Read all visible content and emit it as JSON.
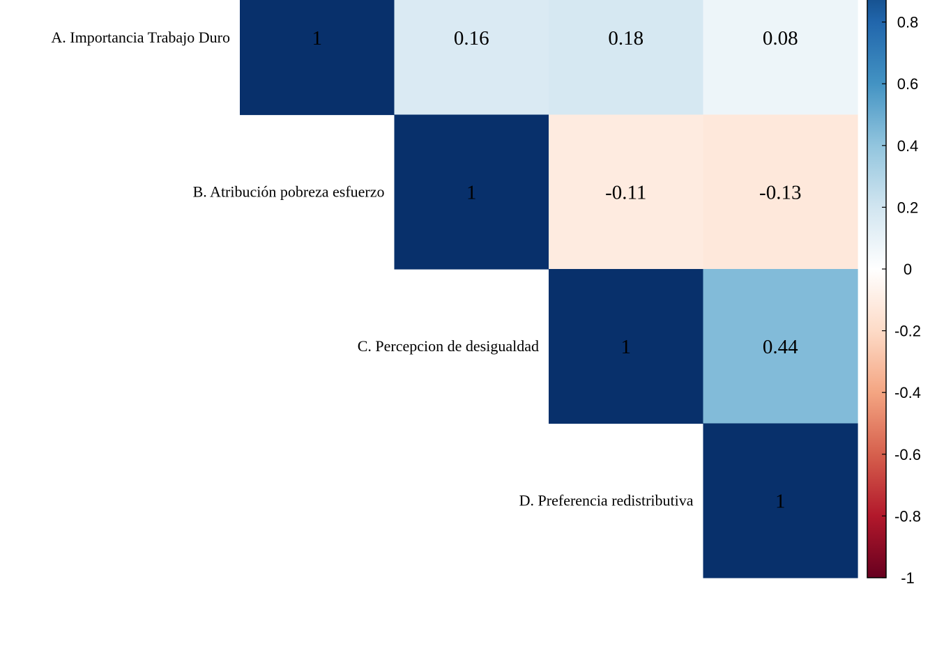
{
  "chart_data": {
    "type": "heatmap",
    "style": "upper-triangle correlation matrix",
    "variables": [
      "A. Importancia Trabajo Duro",
      "B. Atribución pobreza esfuerzo",
      "C. Percepcion de desigualdad",
      "D. Preferencia redistributiva"
    ],
    "cells": [
      {
        "row": 0,
        "col": 0,
        "value": 1,
        "label": "1"
      },
      {
        "row": 0,
        "col": 1,
        "value": 0.16,
        "label": "0.16"
      },
      {
        "row": 0,
        "col": 2,
        "value": 0.18,
        "label": "0.18"
      },
      {
        "row": 0,
        "col": 3,
        "value": 0.08,
        "label": "0.08"
      },
      {
        "row": 1,
        "col": 1,
        "value": 1,
        "label": "1"
      },
      {
        "row": 1,
        "col": 2,
        "value": -0.11,
        "label": "-0.11"
      },
      {
        "row": 1,
        "col": 3,
        "value": -0.13,
        "label": "-0.13"
      },
      {
        "row": 2,
        "col": 2,
        "value": 1,
        "label": "1"
      },
      {
        "row": 2,
        "col": 3,
        "value": 0.44,
        "label": "0.44"
      },
      {
        "row": 3,
        "col": 3,
        "value": 1,
        "label": "1"
      }
    ],
    "color_scale": {
      "domain": [
        -1,
        1
      ],
      "palette": "RdBu",
      "stops": [
        "#67001F",
        "#B2182B",
        "#D6604D",
        "#F4A582",
        "#FDDBC7",
        "#FFFFFF",
        "#D1E5F0",
        "#92C5DE",
        "#4393C3",
        "#2166AC",
        "#053061"
      ]
    },
    "colorbar": {
      "placement": "right",
      "ticks": [
        0.8,
        0.6,
        0.4,
        0.2,
        0,
        -0.2,
        -0.4,
        -0.6,
        -0.8,
        -1
      ],
      "tick_labels": [
        "0.8",
        "0.6",
        "0.4",
        "0.2",
        "0",
        "-0.2",
        "-0.4",
        "-0.6",
        "-0.8",
        "-1"
      ]
    },
    "colors": {
      "diagonal": "#08306B",
      "text": "#000000"
    }
  }
}
